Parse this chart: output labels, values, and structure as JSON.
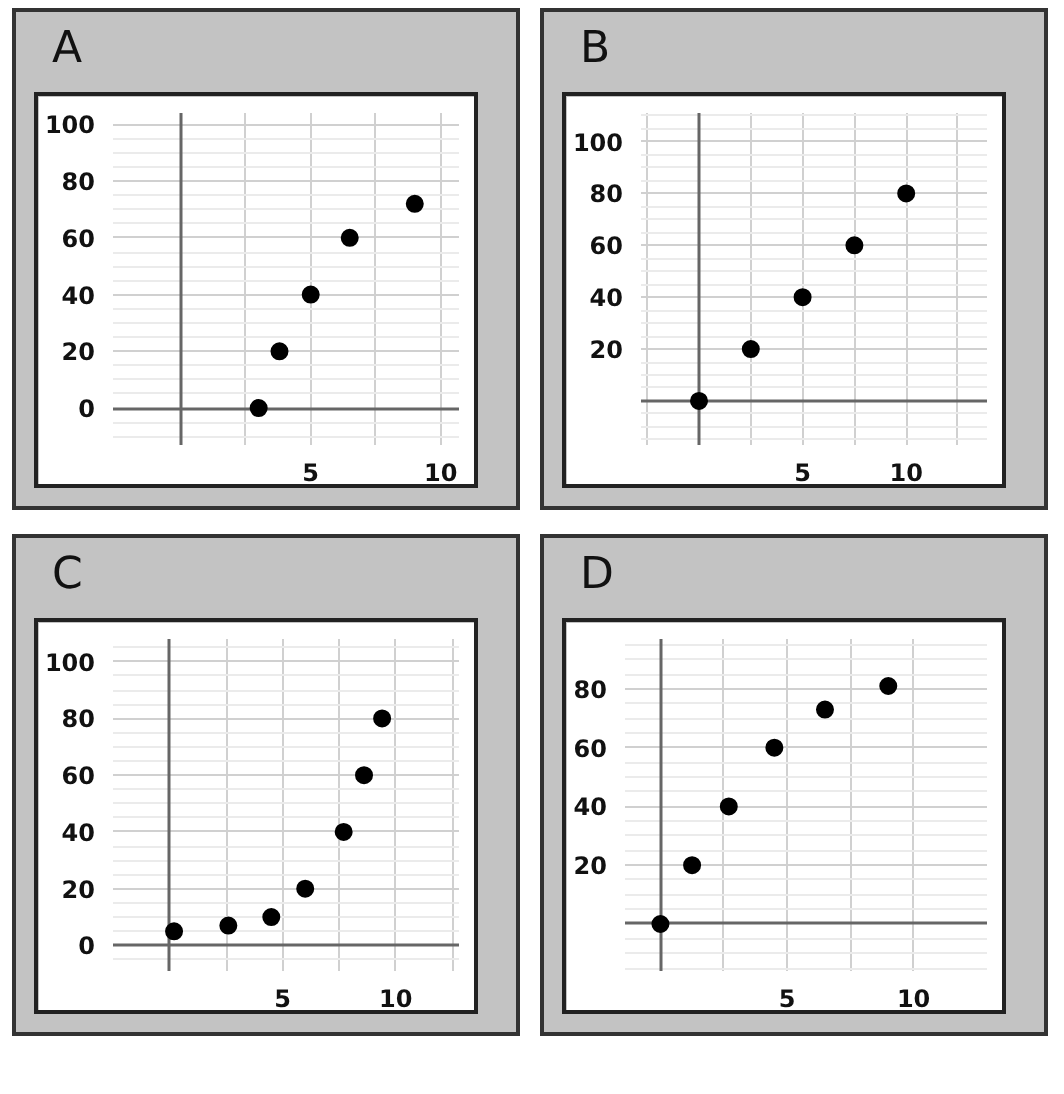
{
  "chart_data": [
    {
      "type": "scatter",
      "title": "A",
      "x": [
        3,
        3.8,
        5,
        6.5,
        9
      ],
      "values": [
        0,
        20,
        40,
        60,
        72
      ],
      "color": "#000000",
      "marker": "circle",
      "xlim": [
        -2.6,
        10.7
      ],
      "ylim": [
        -13,
        104
      ],
      "xticks": [
        {
          "value": 0,
          "label": null
        },
        {
          "value": 2.5,
          "label": null
        },
        5,
        {
          "value": 7.5,
          "label": null
        },
        10
      ],
      "yticks": [
        0,
        20,
        40,
        60,
        80,
        100
      ],
      "grid": true
    },
    {
      "type": "scatter",
      "title": "B",
      "x": [
        0,
        2.5,
        5,
        7.5,
        10
      ],
      "values": [
        0,
        20,
        40,
        60,
        80
      ],
      "color": "#000000",
      "marker": "circle",
      "xlim": [
        -2.8,
        13.9
      ],
      "ylim": [
        -17,
        111
      ],
      "xticks": [
        {
          "value": -2.5,
          "label": null
        },
        {
          "value": 0,
          "label": null
        },
        {
          "value": 2.5,
          "label": null
        },
        5,
        {
          "value": 7.5,
          "label": null
        },
        10,
        {
          "value": 12.5,
          "label": null
        }
      ],
      "yticks": [
        {
          "value": 0,
          "label": null
        },
        20,
        40,
        60,
        80,
        100
      ],
      "grid": true
    },
    {
      "type": "scatter",
      "title": "C",
      "x": [
        0.2,
        2.6,
        4.5,
        6,
        7.7,
        8.6,
        9.4
      ],
      "values": [
        5,
        7,
        10,
        20,
        40,
        60,
        80
      ],
      "color": "#000000",
      "marker": "circle",
      "xlim": [
        -2.5,
        12.8
      ],
      "ylim": [
        -9,
        108
      ],
      "xticks": [
        {
          "value": -2.5,
          "label": null
        },
        {
          "value": 0,
          "label": null
        },
        {
          "value": 2.5,
          "label": null
        },
        5,
        {
          "value": 7.5,
          "label": null
        },
        10,
        {
          "value": 12.5,
          "label": null
        }
      ],
      "yticks": [
        0,
        20,
        40,
        60,
        80,
        100
      ],
      "grid": true
    },
    {
      "type": "scatter",
      "title": "D",
      "x": [
        0,
        1.25,
        2.7,
        4.5,
        6.5,
        9
      ],
      "values": [
        0,
        20,
        40,
        60,
        73,
        81
      ],
      "color": "#000000",
      "marker": "circle",
      "xlim": [
        -1.4,
        12.9
      ],
      "ylim": [
        -16,
        97
      ],
      "xticks": [
        {
          "value": 0,
          "label": null
        },
        {
          "value": 2.5,
          "label": null
        },
        5,
        {
          "value": 7.5,
          "label": null
        },
        10
      ],
      "yticks": [
        {
          "value": 0,
          "label": null
        },
        20,
        40,
        60,
        80
      ],
      "grid": true
    }
  ]
}
